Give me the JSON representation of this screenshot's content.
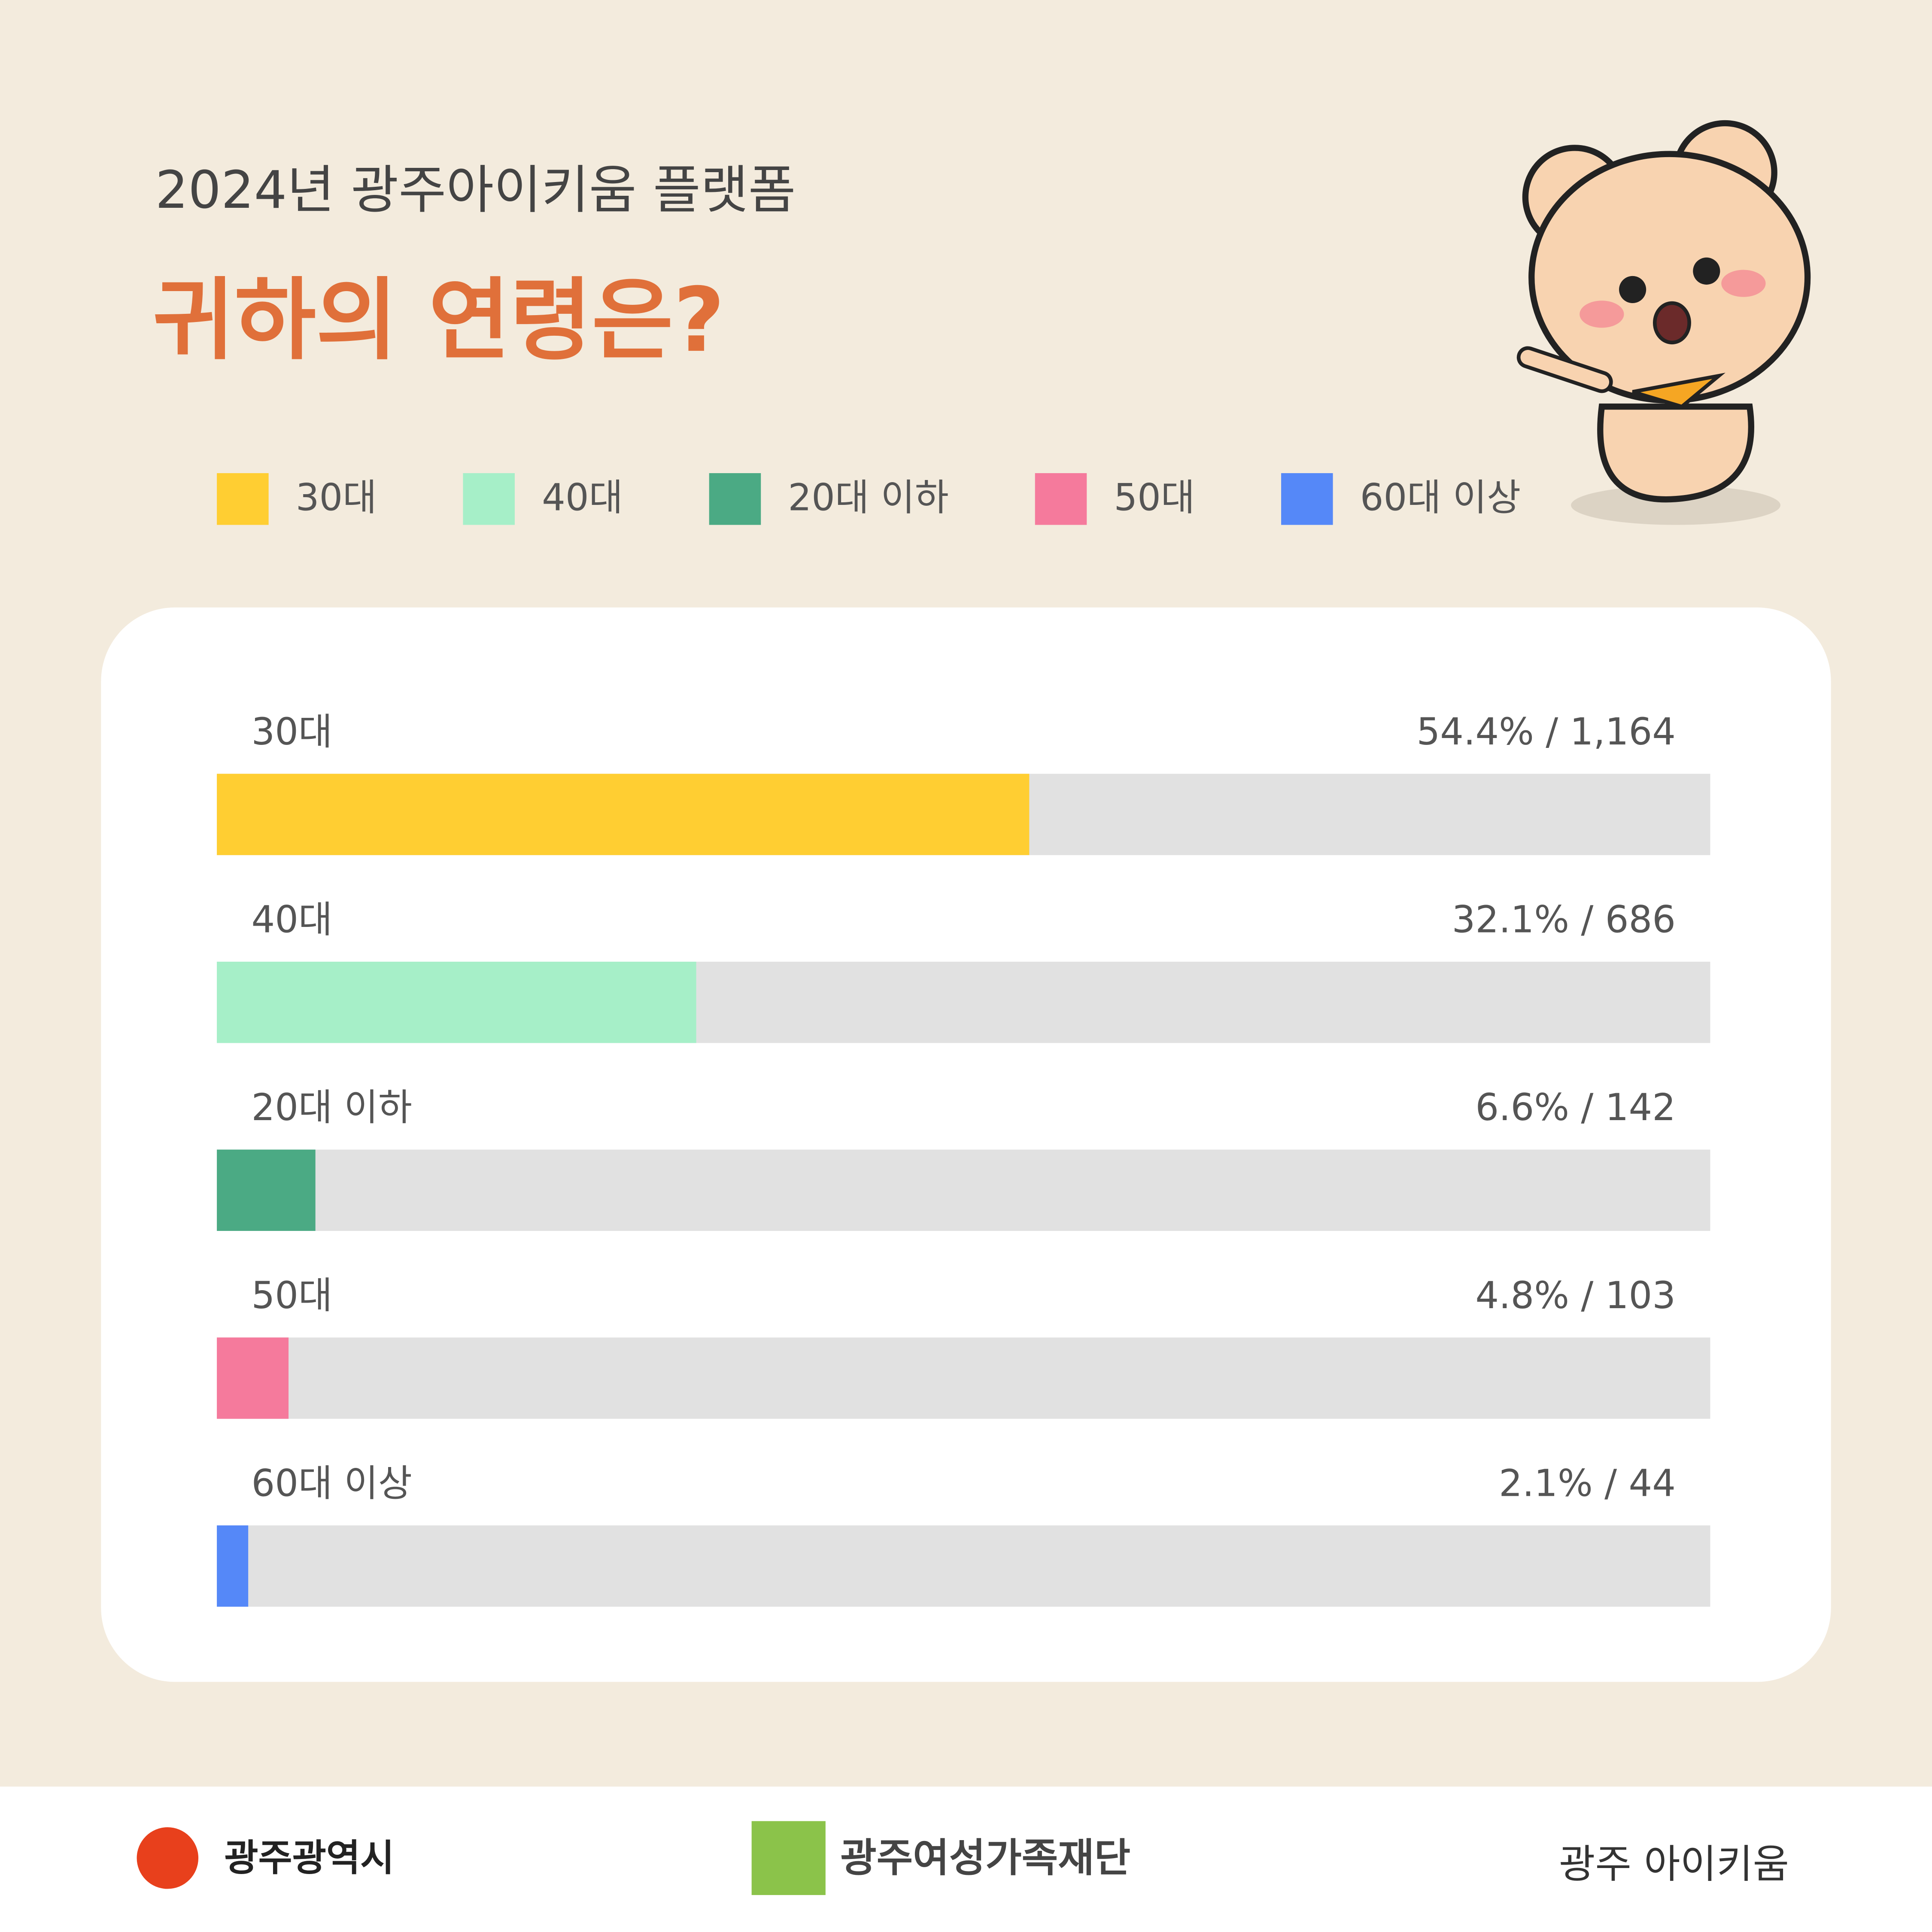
{
  "chart_data": {
    "type": "bar",
    "orientation": "horizontal",
    "title": "2024년 광주아이키움 플랫폼",
    "subtitle": "귀하의 연령은?",
    "categories": [
      "30대",
      "40대",
      "20대 이하",
      "50대",
      "60대 이상"
    ],
    "values": [
      54.4,
      32.1,
      6.6,
      4.8,
      2.1
    ],
    "value_labels": [
      "54.4% / 1,164",
      "32.1% / 686",
      "6.6% / 142",
      "4.8% / 103",
      "2.1% / 44"
    ],
    "colors": [
      "#FFCE32",
      "#A6EFC8",
      "#4BAA84",
      "#F57A9C",
      "#5588F8"
    ],
    "xlim": [
      0,
      100
    ],
    "legend": "top"
  },
  "footer": {
    "logos": [
      "광주광역시",
      "광주여성가족재단",
      "광주 아이키움"
    ]
  }
}
